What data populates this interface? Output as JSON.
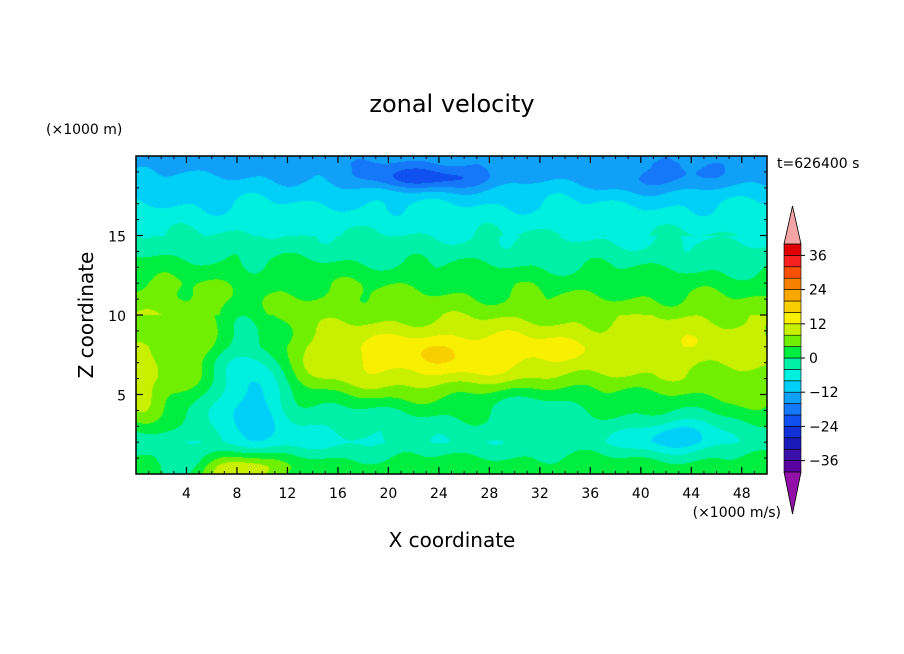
{
  "chart_data": {
    "type": "heatmap",
    "subtype": "filled-contour",
    "title": "zonal velocity",
    "time_label": "t=626400 s",
    "xlabel": "X coordinate",
    "ylabel": "Z coordinate",
    "x_unit": "(×1000 m/s)",
    "y_unit": "(×1000 m)",
    "xlim": [
      0,
      50
    ],
    "ylim": [
      0,
      20
    ],
    "x_ticks": [
      4,
      8,
      12,
      16,
      20,
      24,
      28,
      32,
      36,
      40,
      44,
      48
    ],
    "y_ticks": [
      5,
      10,
      15
    ],
    "grid": false,
    "colorbar": {
      "position": "right",
      "extend": "both",
      "levels": [
        -40,
        -36,
        -32,
        -28,
        -24,
        -20,
        -16,
        -12,
        -8,
        -4,
        0,
        4,
        8,
        12,
        16,
        20,
        24,
        28,
        32,
        36,
        40
      ],
      "tick_values": [
        -36,
        -24,
        -12,
        0,
        12,
        24,
        36
      ],
      "tick_labels": [
        "−36",
        "−24",
        "−12",
        "0",
        "12",
        "24",
        "36"
      ],
      "colors": [
        "#5a00a0",
        "#3a10a8",
        "#1a1ab8",
        "#1030d8",
        "#1050f0",
        "#1478f8",
        "#10a0f8",
        "#00d0f8",
        "#00f0e0",
        "#00f0a8",
        "#00ee40",
        "#70f000",
        "#c8f000",
        "#f8f000",
        "#f8d000",
        "#f8a800",
        "#f88000",
        "#f85000",
        "#f82020",
        "#e00000"
      ],
      "over_color": "#f4a4a4",
      "under_color": "#9010a8"
    },
    "field_summary": {
      "z_profile_x0_to_50": [
        {
          "z": 19.5,
          "value": -14
        },
        {
          "z": 18,
          "value": -10
        },
        {
          "z": 16,
          "value": -6
        },
        {
          "z": 14,
          "value": -2
        },
        {
          "z": 12,
          "value": 3
        },
        {
          "z": 10,
          "value": 6
        },
        {
          "z": 8,
          "value": 8
        },
        {
          "z": 6,
          "value": 6
        },
        {
          "z": 4,
          "value": 1
        },
        {
          "z": 2,
          "value": -3
        },
        {
          "z": 0.5,
          "value": 2
        }
      ],
      "maxima": [
        {
          "x": 27,
          "z": 7.5,
          "value": 14
        },
        {
          "x": 8,
          "z": 0.5,
          "value": 13
        },
        {
          "x": 1,
          "z": 4.5,
          "value": 10
        }
      ],
      "minima": [
        {
          "x": 23,
          "z": 18.5,
          "value": -22
        },
        {
          "x": 9,
          "z": 6,
          "value": -8
        },
        {
          "x": 43,
          "z": 2.5,
          "value": -11
        }
      ]
    }
  }
}
